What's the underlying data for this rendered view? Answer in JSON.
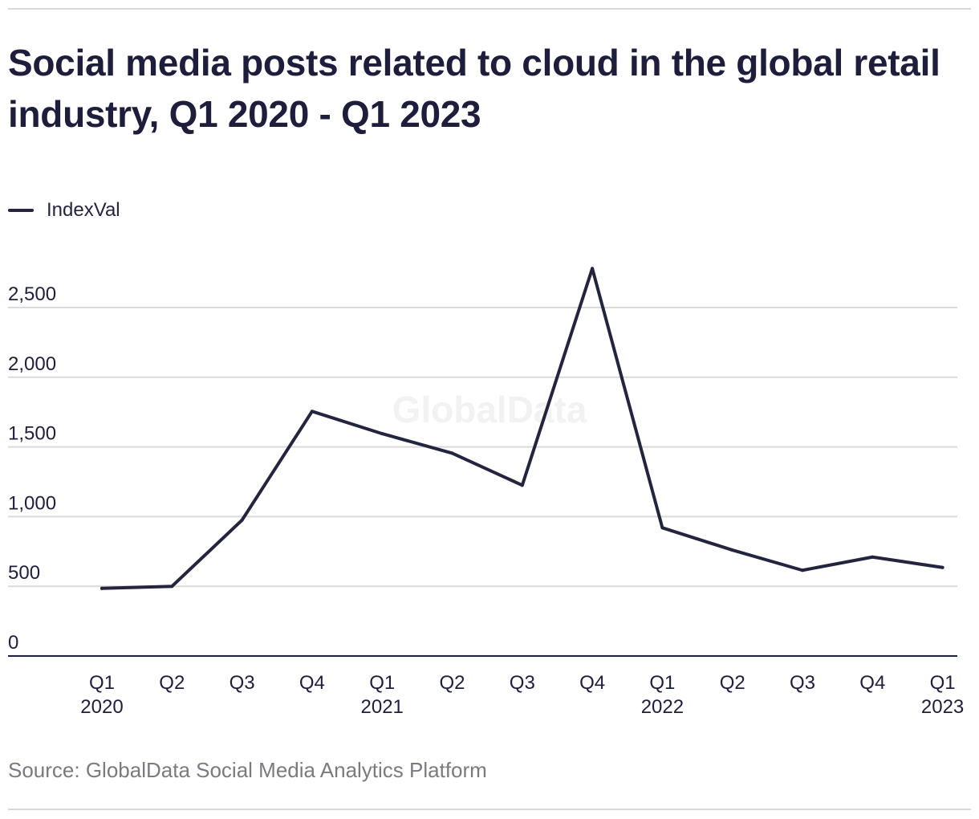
{
  "title": "Social media posts related to cloud in the global retail industry, Q1 2020 - Q1 2023",
  "source": "Source: GlobalData Social Media Analytics Platform",
  "watermark": "GlobalData",
  "colors": {
    "line": "#24243f",
    "grid": "#d9d9d9",
    "axis": "#1f1f3d",
    "watermark": "#f2f2f2"
  },
  "chart_data": {
    "type": "line",
    "categories": [
      "Q1\n2020",
      "Q2",
      "Q3",
      "Q4",
      "Q1\n2021",
      "Q2",
      "Q3",
      "Q4",
      "Q1\n2022",
      "Q2",
      "Q3",
      "Q4",
      "Q1\n2023"
    ],
    "series": [
      {
        "name": "IndexVal",
        "values": [
          485,
          500,
          975,
          1755,
          1595,
          1455,
          1225,
          2780,
          920,
          760,
          615,
          710,
          635
        ]
      }
    ],
    "yticks": [
      0,
      500,
      1000,
      1500,
      2000,
      2500
    ],
    "ytick_labels": [
      "0",
      "500",
      "1,000",
      "1,500",
      "2,000",
      "2,500"
    ],
    "ylim": [
      0,
      2500
    ],
    "grid": true,
    "legend_position": "top-left",
    "xlabel": "",
    "ylabel": ""
  }
}
